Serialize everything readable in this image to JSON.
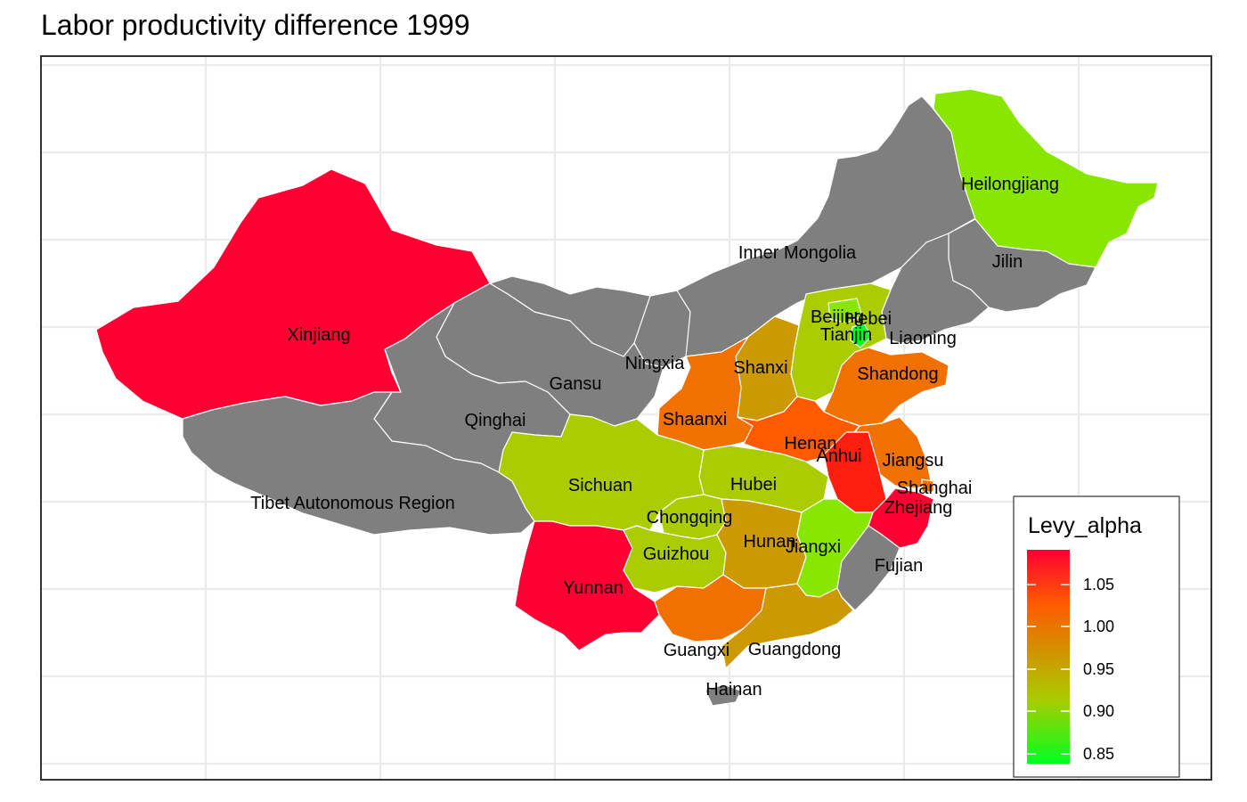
{
  "title": "Labor productivity difference 1999",
  "legend": {
    "title": "Levy_alpha",
    "ticks": [
      "1.05",
      "1.00",
      "0.95",
      "0.90",
      "0.85"
    ],
    "tick_values": [
      1.05,
      1.0,
      0.95,
      0.9,
      0.85
    ],
    "range": [
      0.83,
      1.08
    ],
    "colors": {
      "high": "#FF0033",
      "mid_high": "#FF5A00",
      "mid": "#CC9900",
      "mid_low": "#AACC00",
      "low": "#00FF22"
    },
    "placement": "bottom-right"
  },
  "colors": {
    "no_data": "#7F7F7F",
    "grid": "#EBEBEB",
    "border": "#333333"
  },
  "chart_data": {
    "type": "choropleth",
    "variable": "Levy_alpha",
    "regions": [
      {
        "name": "Xinjiang",
        "value": 1.07
      },
      {
        "name": "Heilongjiang",
        "value": 0.87
      },
      {
        "name": "Inner Mongolia",
        "value": null
      },
      {
        "name": "Jilin",
        "value": null
      },
      {
        "name": "Liaoning",
        "value": null
      },
      {
        "name": "Beijing",
        "value": 0.88
      },
      {
        "name": "Hebei",
        "value": 0.9
      },
      {
        "name": "Tianjin",
        "value": 0.84
      },
      {
        "name": "Shandong",
        "value": 1.0
      },
      {
        "name": "Shanxi",
        "value": 0.95
      },
      {
        "name": "Ningxia",
        "value": null
      },
      {
        "name": "Gansu",
        "value": null
      },
      {
        "name": "Qinghai",
        "value": null
      },
      {
        "name": "Tibet Autonomous Region",
        "value": null
      },
      {
        "name": "Shaanxi",
        "value": 0.99
      },
      {
        "name": "Henan",
        "value": 1.02
      },
      {
        "name": "Anhui",
        "value": 1.05
      },
      {
        "name": "Jiangsu",
        "value": 1.01
      },
      {
        "name": "Shanghai",
        "value": 0.97
      },
      {
        "name": "Zhejiang",
        "value": 1.07
      },
      {
        "name": "Hubei",
        "value": 0.9
      },
      {
        "name": "Sichuan",
        "value": 0.92
      },
      {
        "name": "Chongqing",
        "value": 0.9
      },
      {
        "name": "Guizhou",
        "value": 0.91
      },
      {
        "name": "Hunan",
        "value": 0.96
      },
      {
        "name": "Jiangxi",
        "value": 0.87
      },
      {
        "name": "Fujian",
        "value": null
      },
      {
        "name": "Yunnan",
        "value": 1.07
      },
      {
        "name": "Guangxi",
        "value": 1.0
      },
      {
        "name": "Guangdong",
        "value": 0.96
      },
      {
        "name": "Hainan",
        "value": null
      }
    ]
  }
}
